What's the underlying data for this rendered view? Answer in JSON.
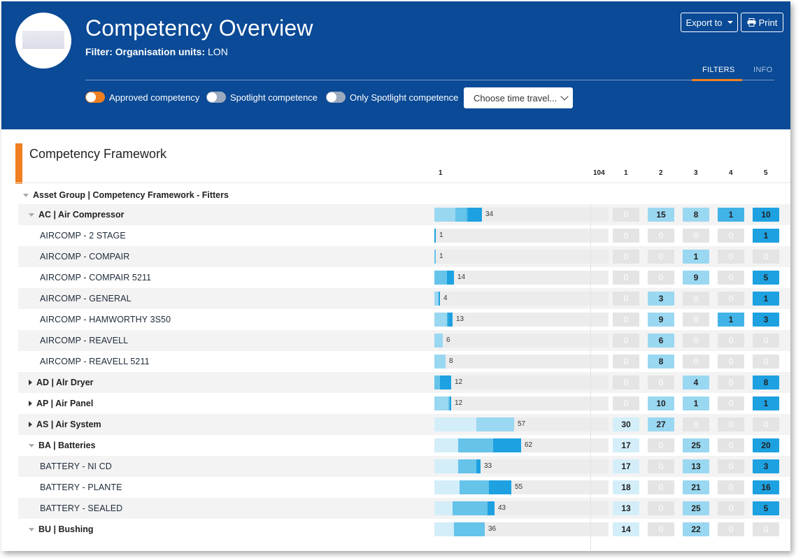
{
  "header": {
    "title": "Competency Overview",
    "filter_label": "Filter: Organisation units:",
    "filter_value": "LON",
    "export_label": "Export to",
    "print_label": "Print",
    "tabs": [
      {
        "label": "FILTERS",
        "active": true
      },
      {
        "label": "INFO",
        "active": false
      }
    ],
    "toggles": [
      {
        "label": "Approved competency",
        "on": true
      },
      {
        "label": "Spotlight competence",
        "on": false
      },
      {
        "label": "Only Spotlight competence",
        "on": false
      }
    ],
    "time_travel_placeholder": "Choose time travel..."
  },
  "colors": {
    "header_bg": "#0a4a96",
    "accent": "#f07f22",
    "level_1": "#d3eef9",
    "level_2": "#9ad7f1",
    "level_3": "#66c3ea",
    "level_4": "#41b3e6",
    "level_5": "#1da1e1",
    "zero": "#e4e4e4"
  },
  "section": {
    "title": "Competency Framework",
    "scale_min": "1",
    "scale_max": "104",
    "levels": [
      "1",
      "2",
      "3",
      "4",
      "5"
    ]
  },
  "group": {
    "label": "Asset Group | Competency Framework - Fitters"
  },
  "rows": [
    {
      "label": "AC | Air Compressor",
      "type": "category",
      "expand": "open",
      "total": 34,
      "levels": [
        0,
        15,
        8,
        1,
        10
      ]
    },
    {
      "label": "AIRCOMP - 2 STAGE",
      "type": "item",
      "total": 1,
      "levels": [
        0,
        0,
        0,
        0,
        1
      ]
    },
    {
      "label": "AIRCOMP - COMPAIR",
      "type": "item",
      "total": 1,
      "levels": [
        0,
        0,
        1,
        0,
        0
      ]
    },
    {
      "label": "AIRCOMP - COMPAIR 5211",
      "type": "item",
      "total": 14,
      "levels": [
        0,
        0,
        9,
        0,
        5
      ]
    },
    {
      "label": "AIRCOMP - GENERAL",
      "type": "item",
      "total": 4,
      "levels": [
        0,
        3,
        0,
        0,
        1
      ]
    },
    {
      "label": "AIRCOMP - HAMWORTHY 3S50",
      "type": "item",
      "total": 13,
      "levels": [
        0,
        9,
        0,
        1,
        3
      ]
    },
    {
      "label": "AIRCOMP - REAVELL",
      "type": "item",
      "total": 6,
      "levels": [
        0,
        6,
        0,
        0,
        0
      ]
    },
    {
      "label": "AIRCOMP - REAVELL 5211",
      "type": "item",
      "total": 8,
      "levels": [
        0,
        8,
        0,
        0,
        0
      ]
    },
    {
      "label": "AD | Alr Dryer",
      "type": "category",
      "expand": "closed",
      "total": 12,
      "levels": [
        0,
        0,
        4,
        0,
        8
      ]
    },
    {
      "label": "AP | Air Panel",
      "type": "category",
      "expand": "closed",
      "total": 12,
      "levels": [
        0,
        10,
        1,
        0,
        1
      ]
    },
    {
      "label": "AS | Air System",
      "type": "category",
      "expand": "closed",
      "total": 57,
      "levels": [
        30,
        27,
        0,
        0,
        0
      ]
    },
    {
      "label": "BA | Batteries",
      "type": "category",
      "expand": "open",
      "total": 62,
      "levels": [
        17,
        0,
        25,
        0,
        20
      ]
    },
    {
      "label": "BATTERY - NI CD",
      "type": "item",
      "total": 33,
      "levels": [
        17,
        0,
        13,
        0,
        3
      ]
    },
    {
      "label": "BATTERY - PLANTE",
      "type": "item",
      "total": 55,
      "levels": [
        18,
        0,
        21,
        0,
        16
      ]
    },
    {
      "label": "BATTERY - SEALED",
      "type": "item",
      "total": 43,
      "levels": [
        13,
        0,
        25,
        0,
        5
      ]
    },
    {
      "label": "BU | Bushing",
      "type": "category",
      "expand": "open",
      "total": 36,
      "levels": [
        14,
        0,
        22,
        0,
        0
      ]
    }
  ]
}
